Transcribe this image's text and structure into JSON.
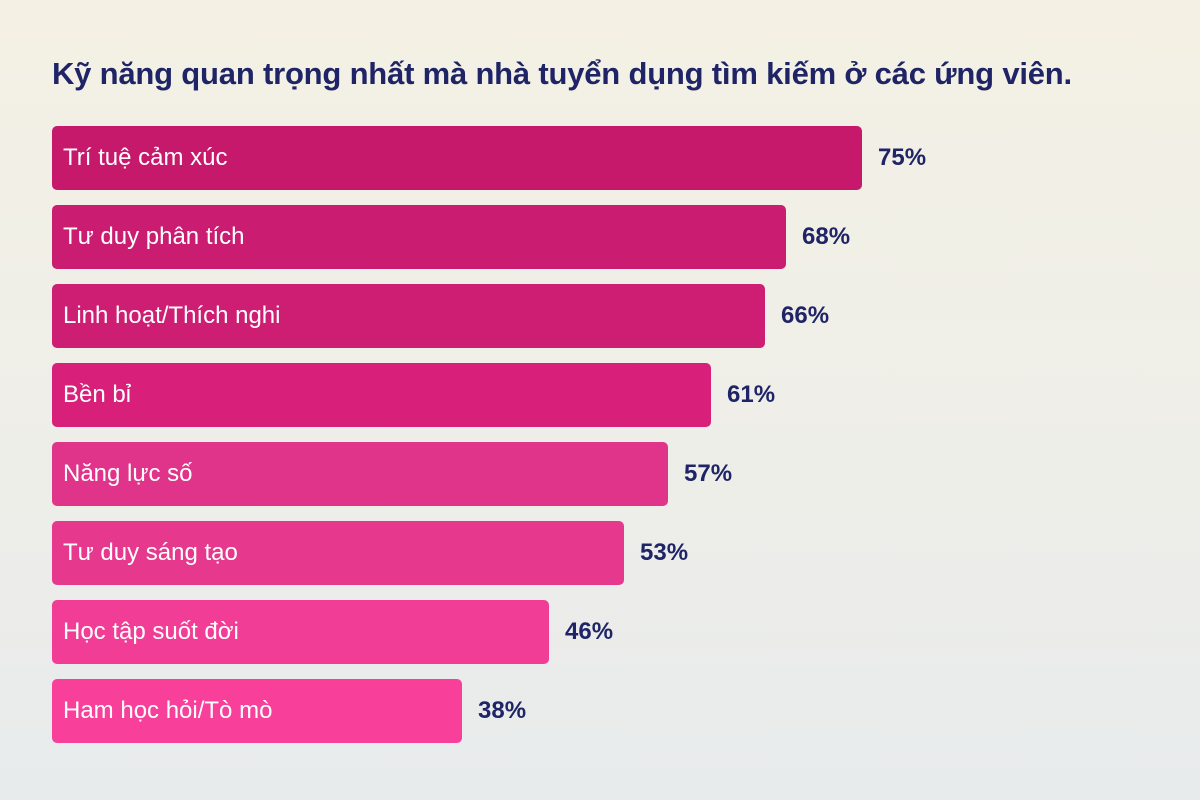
{
  "chart_data": {
    "type": "bar",
    "orientation": "horizontal",
    "title": "Kỹ năng quan trọng nhất mà nhà tuyển dụng tìm kiếm ở các ứng viên.",
    "xlabel": "",
    "ylabel": "",
    "grid": false,
    "categories": [
      "Trí tuệ cảm xúc",
      "Tư duy phân tích",
      "Linh hoạt/Thích nghi",
      "Bền bỉ",
      "Năng lực số",
      "Tư duy sáng tạo",
      "Học tập suốt đời",
      "Ham học hỏi/Tò mò"
    ],
    "values": [
      75,
      68,
      66,
      61,
      57,
      53,
      46,
      38
    ],
    "value_labels": [
      "75%",
      "68%",
      "66%",
      "61%",
      "57%",
      "53%",
      "46%",
      "38%"
    ],
    "xlim": [
      0,
      100
    ],
    "colors": [
      "#c7196c",
      "#ca1c70",
      "#cd1e74",
      "#d81f7a",
      "#e0338a",
      "#e6398e",
      "#f23d96",
      "#f8409b"
    ]
  }
}
